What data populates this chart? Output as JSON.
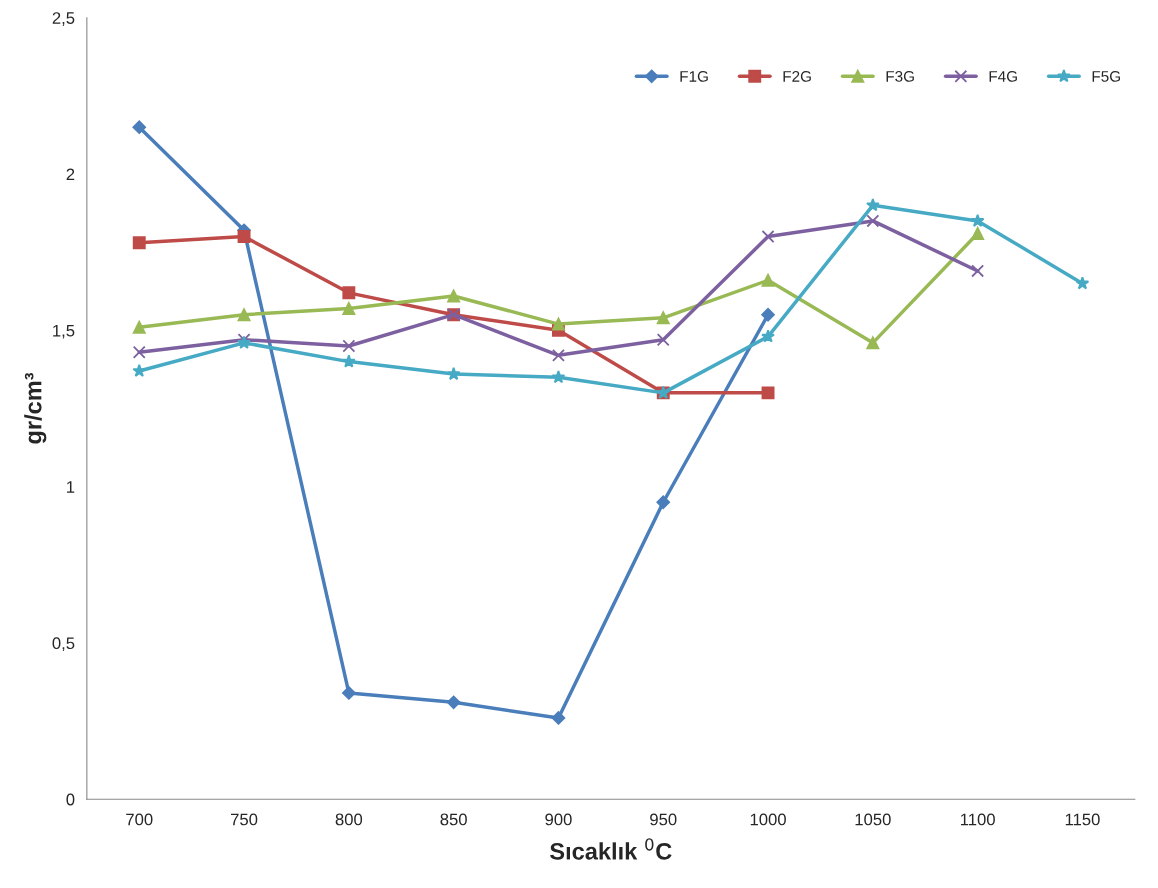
{
  "chart_data": {
    "type": "line",
    "xlabel": "Sıcaklık $^{0}$C",
    "ylabel": "gr/cm³",
    "categories": [
      "700",
      "750",
      "800",
      "850",
      "900",
      "950",
      "1000",
      "1050",
      "1100",
      "1150"
    ],
    "ylim": [
      0,
      2.5
    ],
    "yticks": [
      0,
      {
        "value": 0.5,
        "label": "0,5"
      },
      1,
      {
        "value": 1.5,
        "label": "1,5"
      },
      2,
      {
        "value": 2.5,
        "label": "2,5"
      }
    ],
    "grid": false,
    "legend": "top right",
    "line_style": "solid",
    "series": [
      {
        "name": "F1G",
        "color": "#4a7ebb",
        "marker": "diamond",
        "values": [
          2.15,
          1.82,
          0.34,
          0.31,
          0.26,
          0.95,
          1.55,
          null,
          null,
          null
        ]
      },
      {
        "name": "F2G",
        "color": "#be4b48",
        "marker": "square",
        "values": [
          1.78,
          1.8,
          1.62,
          1.55,
          1.5,
          1.3,
          1.3,
          null,
          null,
          null
        ]
      },
      {
        "name": "F3G",
        "color": "#98b954",
        "marker": "triangle",
        "values": [
          1.51,
          1.55,
          1.57,
          1.61,
          1.52,
          1.54,
          1.66,
          1.46,
          1.81,
          null
        ]
      },
      {
        "name": "F4G",
        "color": "#7d60a0",
        "marker": "cross",
        "values": [
          1.43,
          1.47,
          1.45,
          1.55,
          1.42,
          1.47,
          1.8,
          1.85,
          1.69,
          null
        ]
      },
      {
        "name": "F5G",
        "color": "#46aac5",
        "marker": "star",
        "values": [
          1.37,
          1.46,
          1.4,
          1.36,
          1.35,
          1.3,
          1.48,
          1.9,
          1.85,
          1.65
        ]
      }
    ]
  }
}
